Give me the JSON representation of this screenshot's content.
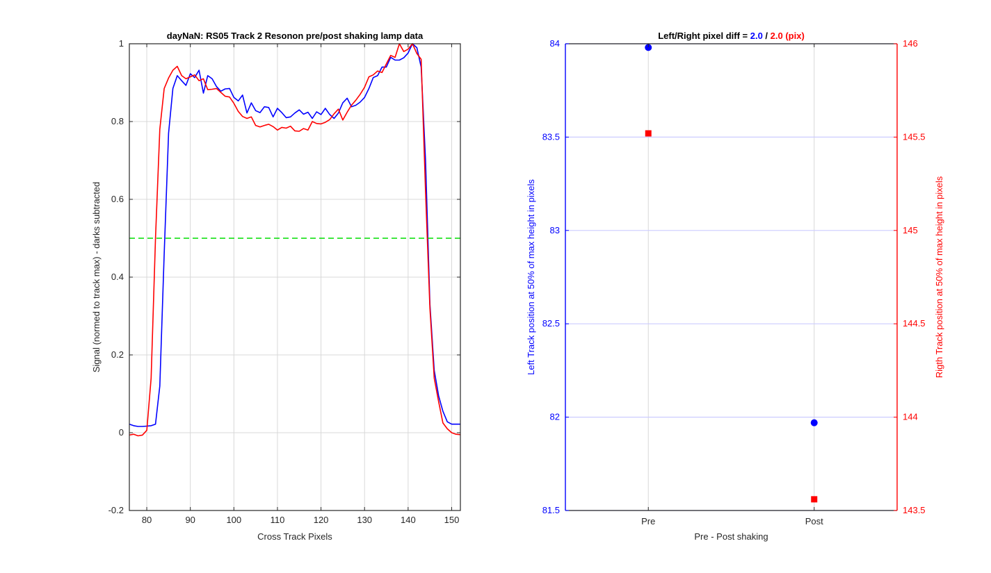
{
  "colors": {
    "blue": "#0000ff",
    "red": "#ff0000",
    "green": "#00dd00",
    "grid": "#d8d8d8",
    "axis": "#262626",
    "rgrid": "#ccccff"
  },
  "chart_data": [
    {
      "type": "line",
      "title": "dayNaN: RS05  Track 2 Resonon pre/post shaking lamp data",
      "xlabel": "Cross Track Pixels",
      "ylabel": "Signal (normed to track max) - darks subtracted",
      "xlim": [
        76,
        152
      ],
      "ylim": [
        -0.2,
        1
      ],
      "xticks": [
        80,
        90,
        100,
        110,
        120,
        130,
        140,
        150
      ],
      "yticks": [
        -0.2,
        0,
        0.2,
        0.4,
        0.6,
        0.8,
        1
      ],
      "ytick_labels": [
        "-0.2",
        "0",
        "0.2",
        "0.4",
        "0.6",
        "0.8",
        "1"
      ],
      "grid": true,
      "x": [
        76,
        77,
        78,
        79,
        80,
        81,
        82,
        83,
        84,
        85,
        86,
        87,
        88,
        89,
        90,
        91,
        92,
        93,
        94,
        95,
        96,
        97,
        98,
        99,
        100,
        101,
        102,
        103,
        104,
        105,
        106,
        107,
        108,
        109,
        110,
        111,
        112,
        113,
        114,
        115,
        116,
        117,
        118,
        119,
        120,
        121,
        122,
        123,
        124,
        125,
        126,
        127,
        128,
        129,
        130,
        131,
        132,
        133,
        134,
        135,
        136,
        137,
        138,
        139,
        140,
        141,
        142,
        143,
        144,
        145,
        146,
        147,
        148,
        149,
        150,
        151,
        152
      ],
      "series": [
        {
          "color": "blue",
          "values": [
            0.022,
            0.018,
            0.016,
            0.016,
            0.017,
            0.018,
            0.022,
            0.12,
            0.46,
            0.77,
            0.885,
            0.918,
            0.905,
            0.893,
            0.923,
            0.913,
            0.932,
            0.873,
            0.918,
            0.91,
            0.89,
            0.878,
            0.884,
            0.885,
            0.862,
            0.853,
            0.868,
            0.822,
            0.848,
            0.828,
            0.823,
            0.838,
            0.836,
            0.812,
            0.834,
            0.823,
            0.81,
            0.812,
            0.822,
            0.83,
            0.819,
            0.824,
            0.808,
            0.825,
            0.818,
            0.834,
            0.818,
            0.808,
            0.822,
            0.848,
            0.86,
            0.838,
            0.842,
            0.85,
            0.862,
            0.885,
            0.913,
            0.918,
            0.94,
            0.94,
            0.965,
            0.958,
            0.958,
            0.964,
            0.976,
            1.0,
            0.99,
            0.94,
            0.7,
            0.33,
            0.16,
            0.095,
            0.055,
            0.028,
            0.022,
            0.022,
            0.022
          ]
        },
        {
          "color": "red",
          "values": [
            -0.006,
            -0.004,
            -0.008,
            -0.006,
            0.006,
            0.14,
            0.5,
            0.78,
            0.885,
            0.912,
            0.932,
            0.942,
            0.918,
            0.91,
            0.915,
            0.92,
            0.905,
            0.91,
            0.882,
            0.883,
            0.885,
            0.875,
            0.865,
            0.863,
            0.847,
            0.826,
            0.813,
            0.808,
            0.812,
            0.79,
            0.786,
            0.79,
            0.793,
            0.787,
            0.778,
            0.785,
            0.783,
            0.788,
            0.776,
            0.775,
            0.782,
            0.778,
            0.8,
            0.795,
            0.794,
            0.798,
            0.805,
            0.82,
            0.832,
            0.804,
            0.824,
            0.842,
            0.855,
            0.87,
            0.888,
            0.915,
            0.92,
            0.93,
            0.926,
            0.948,
            0.97,
            0.965,
            1.0,
            0.98,
            0.986,
            1.0,
            0.975,
            0.96,
            0.62,
            0.32,
            0.14,
            0.08,
            0.025,
            0.01,
            0.0,
            -0.004,
            -0.005
          ]
        },
        {
          "color": "green",
          "dashed": true,
          "values": [
            0.5,
            0.5,
            0.5,
            0.5,
            0.5,
            0.5,
            0.5,
            0.5,
            0.5,
            0.5,
            0.5,
            0.5,
            0.5,
            0.5,
            0.5,
            0.5,
            0.5,
            0.5,
            0.5,
            0.5,
            0.5,
            0.5,
            0.5,
            0.5,
            0.5,
            0.5,
            0.5,
            0.5,
            0.5,
            0.5,
            0.5,
            0.5,
            0.5,
            0.5,
            0.5,
            0.5,
            0.5,
            0.5,
            0.5,
            0.5,
            0.5,
            0.5,
            0.5,
            0.5,
            0.5,
            0.5,
            0.5,
            0.5,
            0.5,
            0.5,
            0.5,
            0.5,
            0.5,
            0.5,
            0.5,
            0.5,
            0.5,
            0.5,
            0.5,
            0.5,
            0.5,
            0.5,
            0.5,
            0.5,
            0.5,
            0.5,
            0.5,
            0.5,
            0.5,
            0.5,
            0.5,
            0.5,
            0.5,
            0.5,
            0.5,
            0.5,
            0.5
          ]
        }
      ]
    },
    {
      "type": "scatter",
      "title_prefix": "Left/Right pixel diff = ",
      "title_left": "2.0",
      "title_sep": " / ",
      "title_right": "2.0 (pix)",
      "xlabel": "Pre - Post shaking",
      "ylabel_left": "Left Track position at 50% of max height in pixels",
      "ylabel_right": "Rigth Track position at 50% of max height in pixels",
      "categories": [
        "Pre",
        "Post"
      ],
      "xlim": [
        0.5,
        2.5
      ],
      "ylim_left": [
        81.5,
        84
      ],
      "ylim_right": [
        143.5,
        146
      ],
      "yticks_left": [
        81.5,
        82,
        82.5,
        83,
        83.5,
        84
      ],
      "yticks_left_labels": [
        "81.5",
        "82",
        "82.5",
        "83",
        "83.5",
        "84"
      ],
      "yticks_right": [
        143.5,
        144,
        144.5,
        145,
        145.5,
        146
      ],
      "yticks_right_labels": [
        "143.5",
        "144",
        "144.5",
        "145",
        "145.5",
        "146"
      ],
      "series": [
        {
          "axis": "left",
          "color": "blue",
          "marker": "circle",
          "values": [
            83.98,
            81.97
          ]
        },
        {
          "axis": "right",
          "color": "red",
          "marker": "square",
          "values": [
            145.52,
            143.56
          ]
        }
      ]
    }
  ]
}
